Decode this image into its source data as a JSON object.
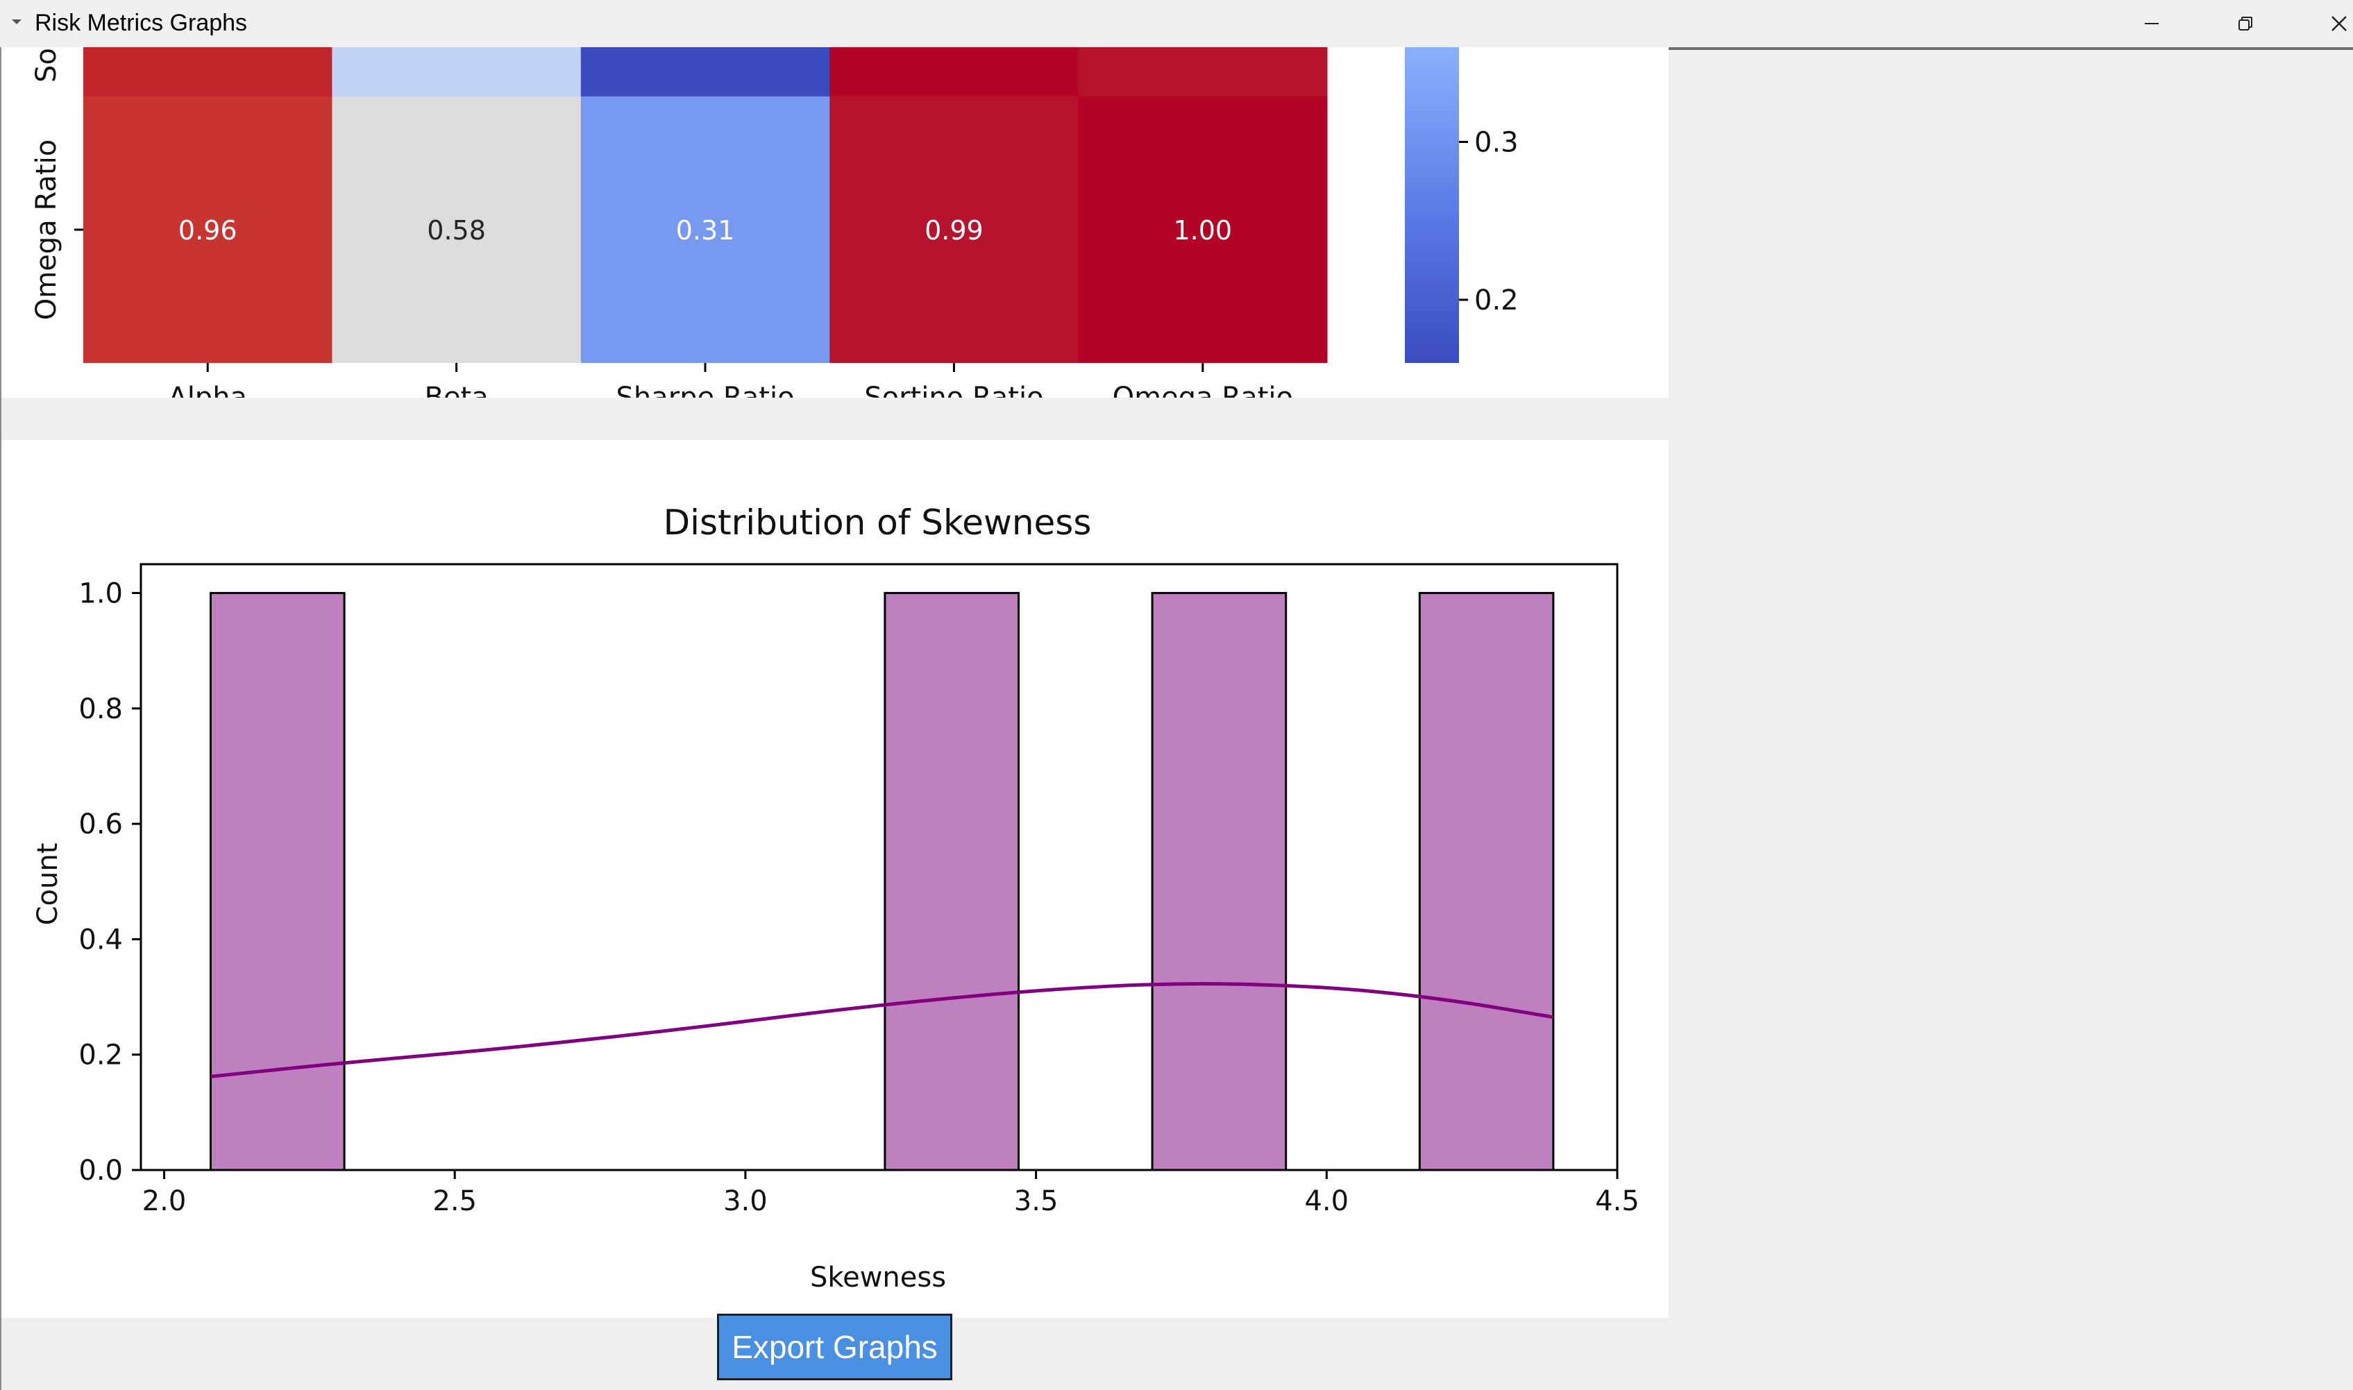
{
  "window": {
    "title": "Risk Metrics Graphs"
  },
  "icons": {
    "menu": "chevron-down-icon",
    "minimize": "minimize-icon",
    "restore": "restore-icon",
    "close": "close-icon"
  },
  "export_button_label": "Export Graphs",
  "chart_data": [
    {
      "type": "heatmap",
      "visible_rows": [
        "So",
        "Omega Ratio"
      ],
      "columns": [
        "Alpha",
        "Beta",
        "Sharpe Ratio",
        "Sortino Ratio",
        "Omega Ratio"
      ],
      "rows": [
        {
          "label": "So",
          "values": [
            null,
            null,
            null,
            null,
            null
          ],
          "colors": [
            "#c2262a",
            "#c0d3f5",
            "#3b4cc0",
            "#b40426",
            "#b5132b"
          ]
        },
        {
          "label": "Omega Ratio",
          "values": [
            0.96,
            0.58,
            0.31,
            0.99,
            1.0
          ],
          "value_labels": [
            "0.96",
            "0.58",
            "0.31",
            "0.99",
            "1.00"
          ],
          "colors": [
            "#c83531",
            "#dddcdc",
            "#7799f0",
            "#b5142c",
            "#b40426"
          ]
        }
      ],
      "colorbar": {
        "ticks": [
          "0.3",
          "0.2"
        ],
        "tick_values": [
          0.3,
          0.2
        ],
        "range_visible": [
          0.16,
          0.36
        ],
        "colormap": "coolwarm"
      }
    },
    {
      "type": "bar",
      "title": "Distribution of Skewness",
      "xlabel": "Skewness",
      "ylabel": "Count",
      "xlim": [
        1.96,
        4.5
      ],
      "ylim": [
        0,
        1.05
      ],
      "xticks": [
        "2.0",
        "2.5",
        "3.0",
        "3.5",
        "4.0",
        "4.5"
      ],
      "xtick_values": [
        2.0,
        2.5,
        3.0,
        3.5,
        4.0,
        4.5
      ],
      "yticks": [
        "0.0",
        "0.2",
        "0.4",
        "0.6",
        "0.8",
        "1.0"
      ],
      "ytick_values": [
        0.0,
        0.2,
        0.4,
        0.6,
        0.8,
        1.0
      ],
      "bins": [
        {
          "x0": 2.08,
          "x1": 2.31,
          "count": 1
        },
        {
          "x0": 3.24,
          "x1": 3.47,
          "count": 1
        },
        {
          "x0": 3.7,
          "x1": 3.93,
          "count": 1
        },
        {
          "x0": 4.16,
          "x1": 4.39,
          "count": 1
        }
      ],
      "kde": {
        "x": [
          2.08,
          2.3,
          2.6,
          2.9,
          3.2,
          3.5,
          3.75,
          4.0,
          4.2,
          4.39
        ],
        "y": [
          0.162,
          0.185,
          0.212,
          0.245,
          0.283,
          0.312,
          0.325,
          0.318,
          0.297,
          0.265
        ]
      },
      "bar_color": "#bf80bf",
      "kde_color": "#800080",
      "grid": false
    }
  ]
}
